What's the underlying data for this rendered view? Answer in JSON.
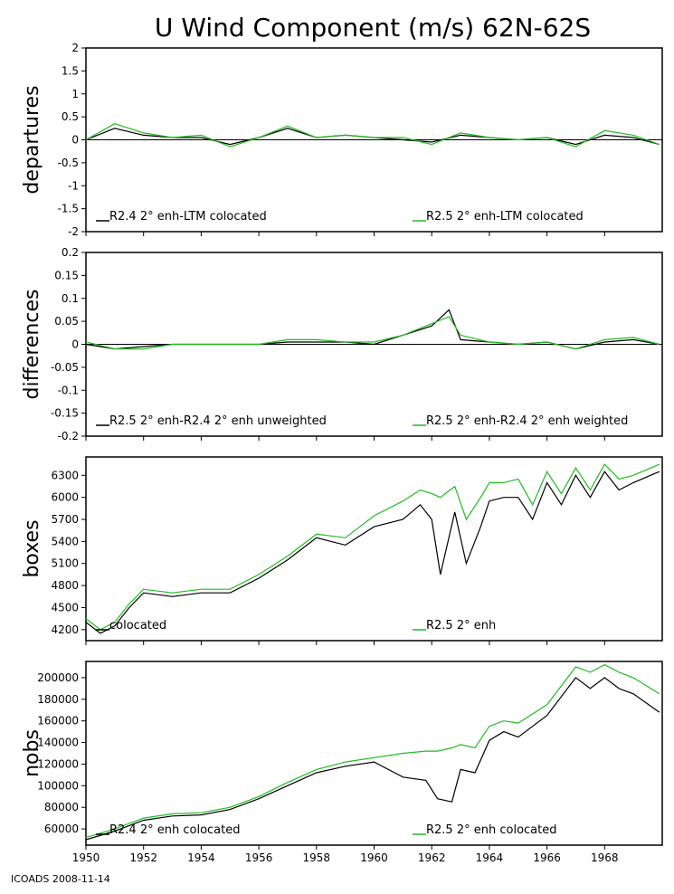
{
  "title": "U Wind Component (m/s) 62N-62S",
  "footer": "ICOADS 2008-11-14",
  "colors": {
    "black_series": "#000000",
    "green_series": "#22bb22",
    "frame": "#000000"
  },
  "x_axis": {
    "range": [
      1950,
      1970
    ],
    "ticks": [
      "1950",
      "1952",
      "1954",
      "1956",
      "1958",
      "1960",
      "1962",
      "1964",
      "1966",
      "1968"
    ]
  },
  "chart_data": [
    {
      "type": "line",
      "ylabel": "departures",
      "ylim": [
        -2,
        2
      ],
      "yticks": [
        "-2",
        "-1.5",
        "-1",
        "-0.5",
        "0",
        "0.5",
        "1",
        "1.5",
        "2"
      ],
      "zero_line": true,
      "legend": [
        "R2.4 2° enh-LTM colocated",
        "R2.5 2° enh-LTM colocated"
      ],
      "series": [
        {
          "name": "R2.4 2° enh-LTM colocated",
          "color": "#000000",
          "x": [
            1950,
            1951,
            1952,
            1953,
            1954,
            1955,
            1956,
            1957,
            1958,
            1959,
            1960,
            1961,
            1962,
            1963,
            1964,
            1965,
            1966,
            1967,
            1968,
            1969,
            1969.9
          ],
          "y": [
            0.0,
            0.25,
            0.1,
            0.05,
            0.05,
            -0.1,
            0.05,
            0.25,
            0.05,
            0.1,
            0.05,
            0.0,
            -0.05,
            0.1,
            0.05,
            0.0,
            0.05,
            -0.1,
            0.1,
            0.05,
            -0.1
          ]
        },
        {
          "name": "R2.5 2° enh-LTM colocated",
          "color": "#22bb22",
          "x": [
            1950,
            1951,
            1952,
            1953,
            1954,
            1955,
            1956,
            1957,
            1958,
            1959,
            1960,
            1961,
            1962,
            1963,
            1964,
            1965,
            1966,
            1967,
            1968,
            1969,
            1969.9
          ],
          "y": [
            0.0,
            0.35,
            0.15,
            0.05,
            0.1,
            -0.15,
            0.05,
            0.3,
            0.05,
            0.1,
            0.05,
            0.05,
            -0.1,
            0.15,
            0.05,
            0.0,
            0.05,
            -0.15,
            0.2,
            0.1,
            -0.1
          ]
        }
      ]
    },
    {
      "type": "line",
      "ylabel": "differences",
      "ylim": [
        -0.2,
        0.2
      ],
      "yticks": [
        "-0.2",
        "-0.15",
        "-0.1",
        "-0.05",
        "0",
        "0.05",
        "0.1",
        "0.15",
        "0.2"
      ],
      "zero_line": true,
      "legend": [
        "R2.5 2° enh-R2.4 2° enh unweighted",
        "R2.5 2° enh-R2.4 2° enh weighted"
      ],
      "series": [
        {
          "name": "R2.5 2° enh-R2.4 2° enh unweighted",
          "color": "#000000",
          "x": [
            1950,
            1951,
            1952,
            1953,
            1954,
            1955,
            1956,
            1957,
            1958,
            1959,
            1960,
            1961,
            1962,
            1962.6,
            1963,
            1964,
            1965,
            1966,
            1967,
            1968,
            1969,
            1969.9
          ],
          "y": [
            0.0,
            -0.01,
            -0.005,
            0.0,
            0.0,
            0.0,
            0.0,
            0.005,
            0.005,
            0.005,
            0.0,
            0.02,
            0.04,
            0.075,
            0.01,
            0.005,
            0.0,
            0.005,
            -0.01,
            0.005,
            0.01,
            0.0
          ]
        },
        {
          "name": "R2.5 2° enh-R2.4 2° enh weighted",
          "color": "#22bb22",
          "x": [
            1950,
            1951,
            1952,
            1953,
            1954,
            1955,
            1956,
            1957,
            1958,
            1959,
            1960,
            1961,
            1962,
            1962.6,
            1963,
            1964,
            1965,
            1966,
            1967,
            1968,
            1969,
            1969.9
          ],
          "y": [
            0.005,
            -0.01,
            -0.01,
            0.0,
            0.0,
            0.0,
            0.0,
            0.01,
            0.01,
            0.005,
            0.005,
            0.02,
            0.045,
            0.06,
            0.02,
            0.005,
            0.0,
            0.005,
            -0.01,
            0.01,
            0.015,
            0.0
          ]
        }
      ]
    },
    {
      "type": "line",
      "ylabel": "boxes",
      "ylim": [
        4050,
        6550
      ],
      "yticks": [
        "4200",
        "4500",
        "4800",
        "5100",
        "5400",
        "5700",
        "6000",
        "6300"
      ],
      "legend": [
        "colocated",
        "R2.5 2° enh"
      ],
      "series": [
        {
          "name": "colocated",
          "color": "#000000",
          "x": [
            1950,
            1950.5,
            1951,
            1951.5,
            1952,
            1953,
            1954,
            1955,
            1956,
            1957,
            1958,
            1959,
            1960,
            1961,
            1961.6,
            1962,
            1962.3,
            1962.8,
            1963.2,
            1963.7,
            1964,
            1964.5,
            1965,
            1965.5,
            1966,
            1966.5,
            1967,
            1967.5,
            1968,
            1968.5,
            1969,
            1969.9
          ],
          "y": [
            4300,
            4150,
            4250,
            4500,
            4700,
            4650,
            4700,
            4700,
            4900,
            5150,
            5450,
            5350,
            5600,
            5700,
            5900,
            5700,
            4950,
            5800,
            5100,
            5600,
            5950,
            6000,
            6000,
            5700,
            6200,
            5900,
            6300,
            6000,
            6350,
            6100,
            6200,
            6350
          ]
        },
        {
          "name": "R2.5 2° enh",
          "color": "#22bb22",
          "x": [
            1950,
            1950.5,
            1951,
            1951.5,
            1952,
            1953,
            1954,
            1955,
            1956,
            1957,
            1958,
            1959,
            1960,
            1961,
            1961.6,
            1962,
            1962.3,
            1962.8,
            1963.2,
            1963.7,
            1964,
            1964.5,
            1965,
            1965.5,
            1966,
            1966.5,
            1967,
            1967.5,
            1968,
            1968.5,
            1969,
            1969.9
          ],
          "y": [
            4350,
            4200,
            4300,
            4550,
            4750,
            4700,
            4750,
            4750,
            4950,
            5200,
            5500,
            5450,
            5750,
            5950,
            6100,
            6050,
            6000,
            6150,
            5700,
            6000,
            6200,
            6200,
            6250,
            5900,
            6350,
            6050,
            6400,
            6100,
            6450,
            6250,
            6300,
            6450
          ]
        }
      ]
    },
    {
      "type": "line",
      "ylabel": "nobs",
      "ylim": [
        45000,
        215000
      ],
      "yticks": [
        "60000",
        "80000",
        "100000",
        "120000",
        "140000",
        "160000",
        "180000",
        "200000"
      ],
      "legend": [
        "R2.4 2° enh colocated",
        "R2.5 2° enh colocated"
      ],
      "series": [
        {
          "name": "R2.4 2° enh colocated",
          "color": "#000000",
          "x": [
            1950,
            1951,
            1952,
            1953,
            1954,
            1955,
            1956,
            1957,
            1958,
            1959,
            1960,
            1961,
            1961.8,
            1962.2,
            1962.7,
            1963,
            1963.5,
            1964,
            1964.5,
            1965,
            1966,
            1967,
            1967.5,
            1968,
            1968.5,
            1969,
            1969.9
          ],
          "y": [
            50000,
            58000,
            68000,
            72000,
            73000,
            78000,
            88000,
            100000,
            112000,
            118000,
            122000,
            108000,
            105000,
            88000,
            85000,
            115000,
            112000,
            142000,
            150000,
            145000,
            165000,
            200000,
            190000,
            200000,
            190000,
            185000,
            168000
          ]
        },
        {
          "name": "R2.5 2° enh colocated",
          "color": "#22bb22",
          "x": [
            1950,
            1951,
            1952,
            1953,
            1954,
            1955,
            1956,
            1957,
            1958,
            1959,
            1960,
            1961,
            1961.8,
            1962.2,
            1962.7,
            1963,
            1963.5,
            1964,
            1964.5,
            1965,
            1966,
            1967,
            1967.5,
            1968,
            1968.5,
            1969,
            1969.9
          ],
          "y": [
            52000,
            60000,
            70000,
            74000,
            75000,
            80000,
            90000,
            103000,
            115000,
            122000,
            126000,
            130000,
            132000,
            132000,
            135000,
            138000,
            135000,
            155000,
            160000,
            158000,
            175000,
            210000,
            205000,
            212000,
            205000,
            200000,
            185000
          ]
        }
      ]
    }
  ]
}
